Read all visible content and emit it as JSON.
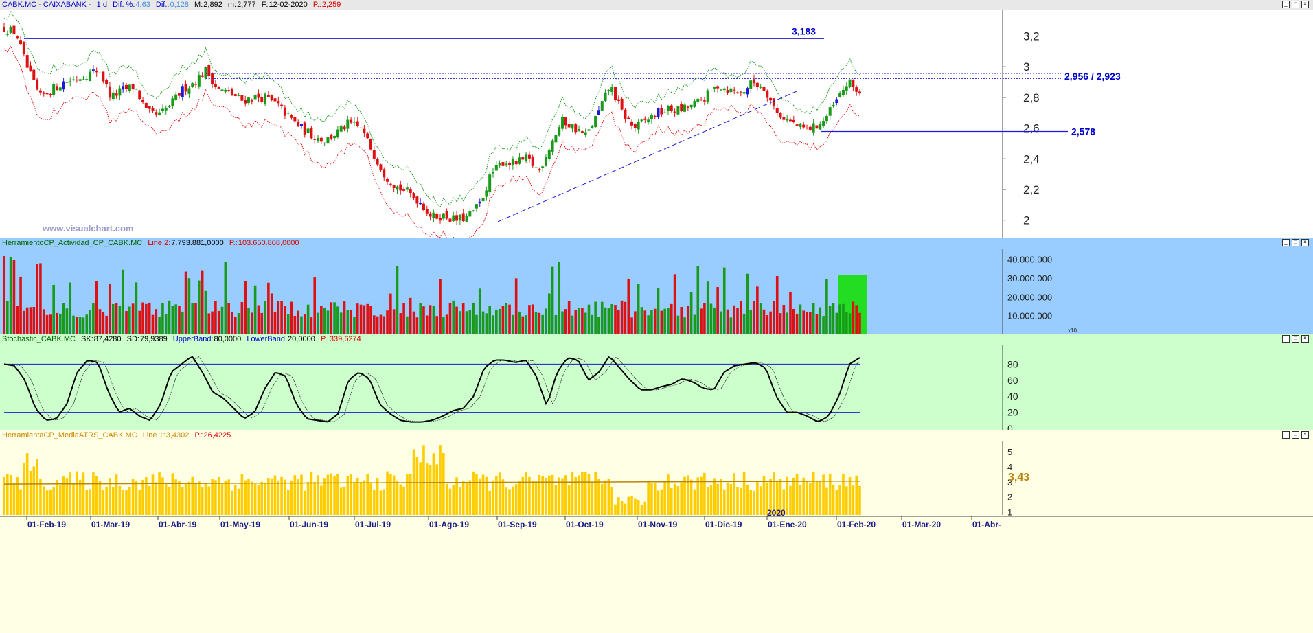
{
  "main_header": {
    "symbol": "CABK.MC - CAIXABANK -",
    "period": "1 d",
    "dif_pct_label": "Dif. %:",
    "dif_pct_value": "4,63",
    "dif_label": "Dif.:",
    "dif_value": "0,128",
    "max_label": "M:",
    "max_value": "2,892",
    "min_label": "m:",
    "min_value": "2,777",
    "date_label": "F:",
    "date_value": "12-02-2020",
    "p_label": "P.:",
    "p_value": "2,259"
  },
  "watermark": "www.visualchart.com",
  "price_annotations": {
    "level_high": "3,183",
    "level_resist": "2,956 / 2,923",
    "level_support": "2,578"
  },
  "price_axis": [
    "3,2",
    "3",
    "2,8",
    "2,6",
    "2,4",
    "2,2",
    "2"
  ],
  "volume_header": {
    "name": "HerramientoCP_Actividad_CP_CABK.MC",
    "line_label": "Line 2:",
    "line_value": "7.793.881,0000",
    "p_label": "P.:",
    "p_value": "103.650.808,0000"
  },
  "volume_axis": [
    "40.000.000",
    "30.000.000",
    "20.000.000",
    "10.000.000"
  ],
  "volume_axis_unit": "x10",
  "stoch_header": {
    "name": "Stochastic_CABK.MC",
    "sk_label": "SK:",
    "sk_value": "87,4280",
    "sd_label": "SD:",
    "sd_value": "79,9389",
    "ub_label": "UpperBand:",
    "ub_value": "80,0000",
    "lb_label": "LowerBand:",
    "lb_value": "20,0000",
    "p_label": "P.:",
    "p_value": "339,6274"
  },
  "stoch_axis": [
    "80",
    "60",
    "40",
    "20",
    "0"
  ],
  "atr_header": {
    "name": "HerramientaCP_MediaATRS_CABK.MC",
    "line_label": "Line 1:",
    "line_value": "3,4302",
    "p_label": "P.:",
    "p_value": "26,4225"
  },
  "atr_axis": [
    "5",
    "4",
    "3",
    "2",
    "1"
  ],
  "atr_last": "3,43",
  "year_marker": "2020",
  "date_axis": [
    "01-Feb-19",
    "01-Mar-19",
    "01-Abr-19",
    "01-May-19",
    "01-Jun-19",
    "01-Jul-19",
    "01-Ago-19",
    "01-Sep-19",
    "01-Oct-19",
    "01-Nov-19",
    "01-Dic-19",
    "01-Ene-20",
    "01-Feb-20",
    "01-Mar-20",
    "01-Abr-"
  ],
  "colors": {
    "bull": "#1a9a1a",
    "bear": "#dd1111",
    "blue_candle": "#1a1ad8",
    "price_bg": "#ffffff",
    "volume_bg": "#99ccff",
    "stoch_bg": "#ccffcc",
    "atr_bg": "#ffffe6",
    "atr_bar": "#ffcc00",
    "atr_line": "#b8860b",
    "label_blue": "#0000cc"
  },
  "chart_data": [
    {
      "type": "candlestick",
      "title": "CABK.MC - CAIXABANK - 1 d",
      "ylim": [
        1.9,
        3.35
      ],
      "x_labels": [
        "01-Feb-19",
        "01-Mar-19",
        "01-Abr-19",
        "01-May-19",
        "01-Jun-19",
        "01-Jul-19",
        "01-Ago-19",
        "01-Sep-19",
        "01-Oct-19",
        "01-Nov-19",
        "01-Dic-19",
        "01-Ene-20",
        "01-Feb-20"
      ],
      "close_path": [
        3.25,
        3.22,
        2.98,
        2.8,
        2.85,
        2.9,
        2.92,
        2.95,
        2.98,
        2.8,
        2.85,
        2.87,
        2.7,
        2.68,
        2.75,
        2.85,
        2.9,
        2.98,
        2.85,
        2.83,
        2.78,
        2.8,
        2.8,
        2.75,
        2.67,
        2.6,
        2.55,
        2.52,
        2.57,
        2.63,
        2.6,
        2.45,
        2.3,
        2.22,
        2.18,
        2.12,
        2.02,
        2.03,
        2.0,
        2.02,
        2.1,
        2.3,
        2.38,
        2.37,
        2.4,
        2.32,
        2.5,
        2.65,
        2.6,
        2.55,
        2.7,
        2.88,
        2.7,
        2.6,
        2.65,
        2.7,
        2.72,
        2.72,
        2.75,
        2.8,
        2.88,
        2.85,
        2.83,
        2.9,
        2.86,
        2.7,
        2.65,
        2.6,
        2.6,
        2.65,
        2.77,
        2.9,
        2.83
      ],
      "levels": {
        "resistance_high": 3.183,
        "resistance_band": [
          2.956,
          2.923
        ],
        "support": 2.578
      },
      "bands": "upper (green dotted) and lower (red dotted) envelopes around price"
    },
    {
      "type": "bar",
      "title": "HerramientoCP_Actividad_CP_CABK.MC",
      "ylim": [
        0,
        45000000
      ],
      "note": "daily volume bars, green up / red down"
    },
    {
      "type": "line",
      "title": "Stochastic_CABK.MC",
      "ylim": [
        0,
        100
      ],
      "bands": [
        80,
        20
      ],
      "sk_path": [
        80,
        78,
        60,
        25,
        10,
        12,
        30,
        70,
        85,
        82,
        45,
        20,
        25,
        15,
        10,
        30,
        70,
        80,
        90,
        70,
        45,
        38,
        25,
        12,
        20,
        50,
        70,
        65,
        30,
        12,
        10,
        8,
        18,
        60,
        70,
        62,
        30,
        18,
        10,
        8,
        8,
        10,
        15,
        22,
        25,
        40,
        75,
        85,
        85,
        82,
        85,
        65,
        28,
        70,
        88,
        85,
        60,
        70,
        90,
        75,
        60,
        48,
        48,
        52,
        55,
        62,
        58,
        50,
        48,
        70,
        78,
        80,
        82,
        75,
        40,
        20,
        20,
        15,
        8,
        15,
        40,
        80,
        88
      ]
    },
    {
      "type": "bar",
      "title": "HerramientaCP_MediaATRS_CABK.MC",
      "ylim": [
        0.8,
        5.5
      ],
      "line_value": 3.43
    }
  ]
}
